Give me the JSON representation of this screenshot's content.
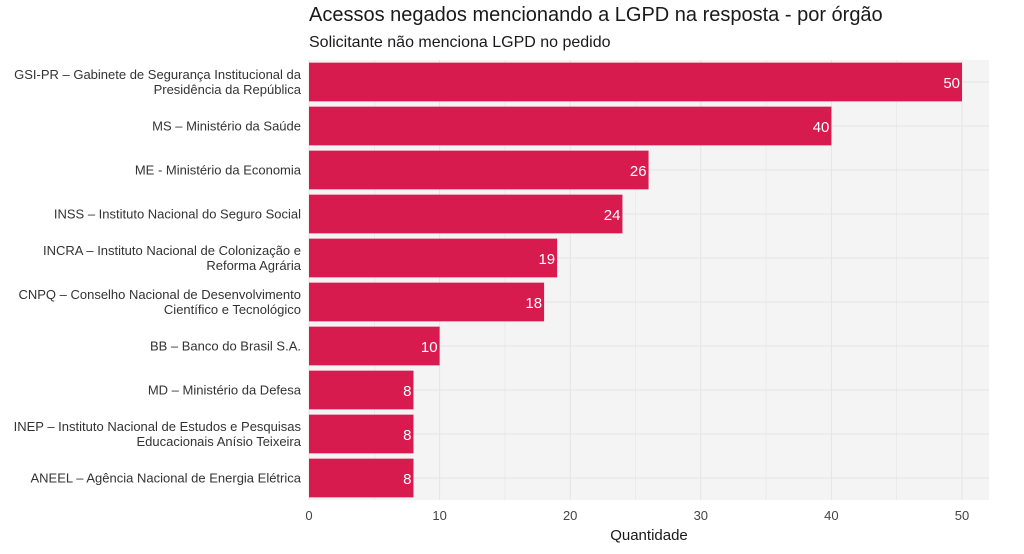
{
  "chart_data": {
    "type": "bar",
    "orientation": "horizontal",
    "title": "Acessos negados mencionando a LGPD na resposta - por órgão",
    "subtitle": "Solicitante não menciona LGPD no pedido",
    "xlabel": "Quantidade",
    "ylabel": "",
    "xlim": [
      0,
      52
    ],
    "xticks": [
      0,
      10,
      20,
      30,
      40,
      50
    ],
    "grid": true,
    "colors": {
      "bar": "#d81b4f",
      "panel": "#f4f4f4",
      "grid": "#e4e4e4"
    },
    "categories": [
      [
        "GSI-PR – Gabinete de Segurança Institucional da",
        "Presidência da República"
      ],
      [
        "MS – Ministério da Saúde"
      ],
      [
        "ME - Ministério da Economia"
      ],
      [
        "INSS – Instituto Nacional do Seguro Social"
      ],
      [
        "INCRA – Instituto Nacional de Colonização e",
        "Reforma Agrária"
      ],
      [
        "CNPQ – Conselho Nacional de Desenvolvimento",
        "Científico e Tecnológico"
      ],
      [
        "BB – Banco do Brasil S.A."
      ],
      [
        "MD – Ministério da Defesa"
      ],
      [
        "INEP – Instituto Nacional de Estudos e Pesquisas",
        "Educacionais Anísio Teixeira"
      ],
      [
        "ANEEL – Agência Nacional de Energia Elétrica"
      ]
    ],
    "values": [
      50,
      40,
      26,
      24,
      19,
      18,
      10,
      8,
      8,
      8
    ]
  }
}
